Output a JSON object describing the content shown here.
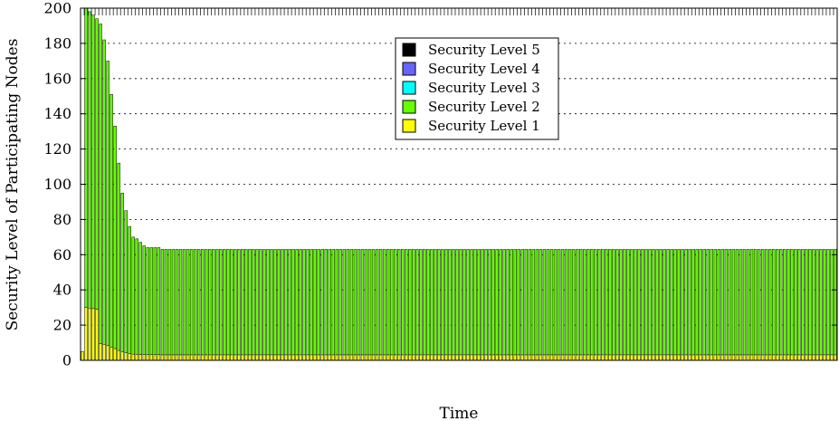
{
  "chart_data": {
    "type": "bar",
    "stacked": true,
    "title": "",
    "xlabel": "Time",
    "ylabel": "Security Level of Participating Nodes",
    "ylim": [
      0,
      200
    ],
    "yticks": [
      0,
      20,
      40,
      60,
      80,
      100,
      120,
      140,
      160,
      180,
      200
    ],
    "grid": "horizontal-dashed",
    "legend_position": "top-center",
    "colors": {
      "level5": "#000000",
      "level4": "#6666ff",
      "level3": "#00ffff",
      "level2": "#66ff00",
      "level1": "#ffff00"
    },
    "legend": [
      {
        "label": "Security Level 5",
        "color": "#000000"
      },
      {
        "label": "Security Level 4",
        "color": "#6666ff"
      },
      {
        "label": "Security Level 3",
        "color": "#00ffff"
      },
      {
        "label": "Security Level 2",
        "color": "#66ff00"
      },
      {
        "label": "Security Level 1",
        "color": "#ffff00"
      }
    ],
    "x_count": 208,
    "initial_totals": [
      5,
      200,
      198,
      196,
      194,
      191,
      182,
      170,
      151,
      133,
      112,
      95,
      85,
      76,
      70,
      69,
      67,
      65,
      64,
      64,
      64,
      64
    ],
    "steady_total": 63,
    "composition_note": "stacked shares per bar: levels 1-5"
  }
}
